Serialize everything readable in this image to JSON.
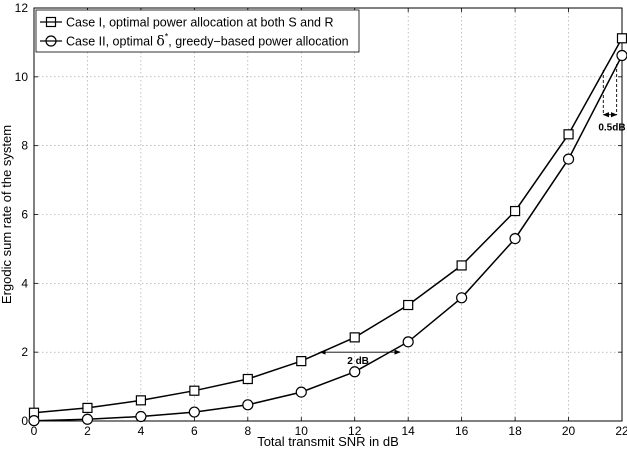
{
  "chart_data": {
    "type": "line",
    "xlabel": "Total transmit SNR in dB",
    "ylabel": "Ergodic sum rate of the system",
    "xlim": [
      0,
      22
    ],
    "ylim": [
      0,
      12
    ],
    "xticks": [
      "0",
      "2",
      "4",
      "6",
      "8",
      "10",
      "12",
      "14",
      "16",
      "18",
      "20",
      "22"
    ],
    "yticks": [
      "0",
      "2",
      "4",
      "6",
      "8",
      "10",
      "12"
    ],
    "grid": true,
    "legend_position": "top-left",
    "x": [
      0,
      2,
      4,
      6,
      8,
      10,
      12,
      14,
      16,
      18,
      20,
      22
    ],
    "series": [
      {
        "name": "Case I, optimal power allocation at both S and R",
        "marker": "square",
        "values": [
          0.24,
          0.38,
          0.6,
          0.88,
          1.22,
          1.74,
          2.43,
          3.37,
          4.52,
          6.1,
          8.33,
          11.12
        ]
      },
      {
        "name_prefix": "Case II, optimal ",
        "name_symbol": "δ",
        "name_sup": "*",
        "name_suffix": ", greedy−based power allocation",
        "marker": "circle",
        "values": [
          0.01,
          0.05,
          0.13,
          0.26,
          0.47,
          0.84,
          1.43,
          2.3,
          3.58,
          5.3,
          7.61,
          10.62
        ]
      }
    ],
    "annotations": [
      {
        "text": "2 dB",
        "y": 2.0,
        "x_from": 10.7,
        "x_to": 13.7
      },
      {
        "text": "0.5dB",
        "x_from": 21.3,
        "x_to": 21.8,
        "y_top": 10.2,
        "y_bottom": 8.9
      }
    ]
  }
}
